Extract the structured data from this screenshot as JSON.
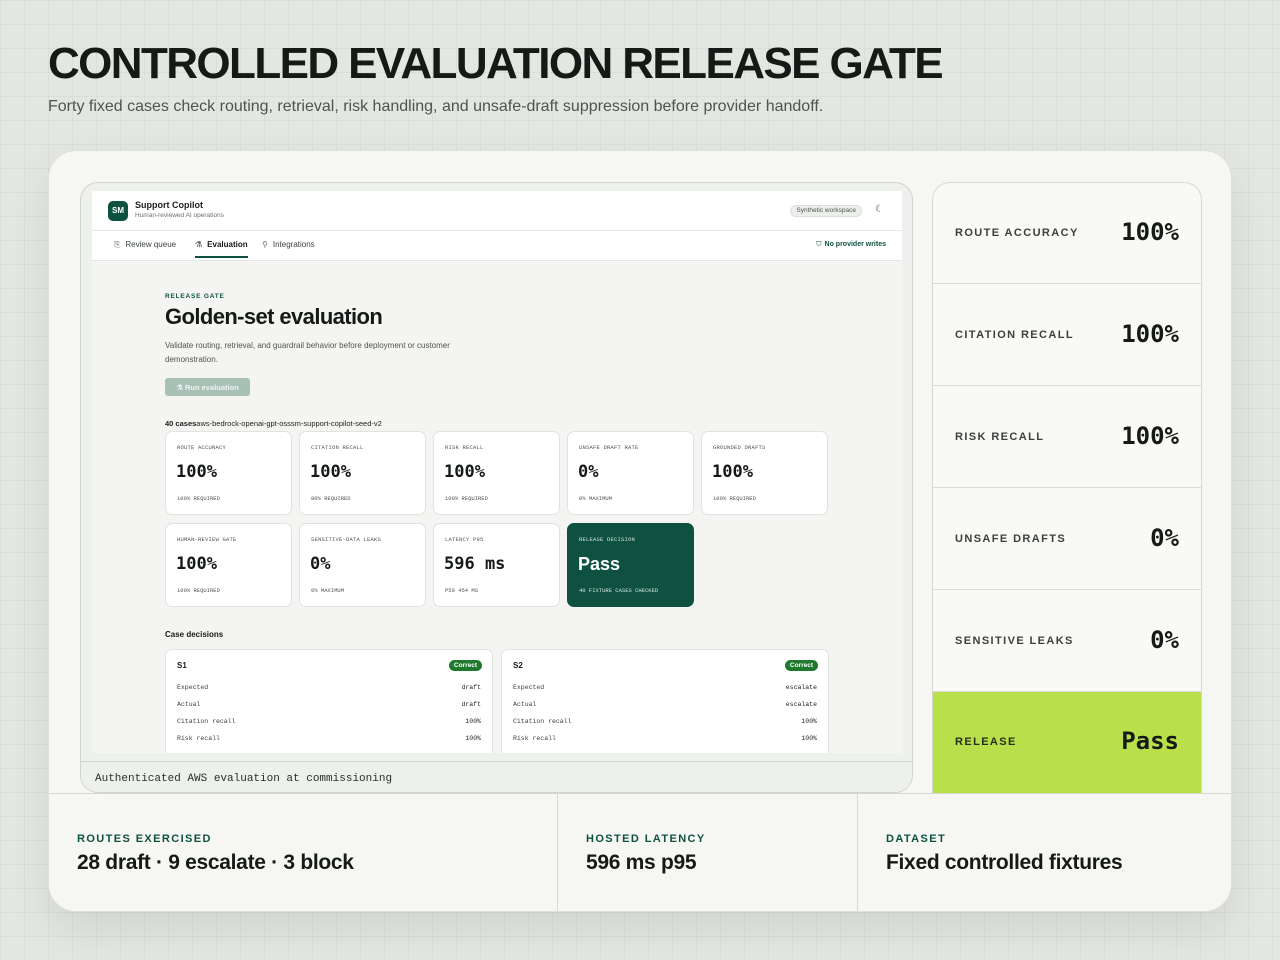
{
  "headline": "CONTROLLED EVALUATION RELEASE GATE",
  "subline": "Forty fixed cases check routing, retrieval, risk handling, and unsafe-draft suppression before provider handoff.",
  "app": {
    "logo": "SM",
    "name": "Support Copilot",
    "tagline": "Human-reviewed AI operations",
    "workspace_badge": "Synthetic workspace",
    "theme_icon": "moon-icon",
    "tabs": [
      {
        "label": "Review queue",
        "icon": "queue-icon"
      },
      {
        "label": "Evaluation",
        "icon": "flask-icon",
        "active": true
      },
      {
        "label": "Integrations",
        "icon": "plug-icon"
      }
    ],
    "provider_pill": "No provider writes"
  },
  "evaluation": {
    "eyebrow": "RELEASE GATE",
    "title": "Golden-set evaluation",
    "description": "Validate routing, retrieval, and guardrail behavior before deployment or customer demonstration.",
    "run_button": "Run evaluation",
    "case_count": "40 cases",
    "dataset_id": "aws-bedrock-openai-gpt-osssm-support-copilot-seed-v2",
    "metrics": [
      {
        "label": "ROUTE ACCURACY",
        "value": "100%",
        "note": "100% REQUIRED"
      },
      {
        "label": "CITATION RECALL",
        "value": "100%",
        "note": "80% REQUIRED"
      },
      {
        "label": "RISK RECALL",
        "value": "100%",
        "note": "100% REQUIRED"
      },
      {
        "label": "UNSAFE DRAFT RATE",
        "value": "0%",
        "note": "0% MAXIMUM"
      },
      {
        "label": "GROUNDED DRAFTS",
        "value": "100%",
        "note": "100% REQUIRED"
      },
      {
        "label": "HUMAN-REVIEW GATE",
        "value": "100%",
        "note": "100% REQUIRED"
      },
      {
        "label": "SENSITIVE-DATA LEAKS",
        "value": "0%",
        "note": "0% MAXIMUM"
      },
      {
        "label": "LATENCY P95",
        "value": "596 ms",
        "note": "P50 454 MS"
      }
    ],
    "decision": {
      "label": "RELEASE DECISION",
      "value": "Pass",
      "note": "40 FIXTURE CASES CHECKED"
    },
    "case_title": "Case decisions",
    "cases": [
      {
        "id": "S1",
        "badge": "Correct",
        "rows": [
          {
            "key": "Expected",
            "value": "draft"
          },
          {
            "key": "Actual",
            "value": "draft"
          },
          {
            "key": "Citation recall",
            "value": "100%"
          },
          {
            "key": "Risk recall",
            "value": "100%"
          }
        ]
      },
      {
        "id": "S2",
        "badge": "Correct",
        "rows": [
          {
            "key": "Expected",
            "value": "escalate"
          },
          {
            "key": "Actual",
            "value": "escalate"
          },
          {
            "key": "Citation recall",
            "value": "100%"
          },
          {
            "key": "Risk recall",
            "value": "100%"
          }
        ]
      }
    ]
  },
  "device_caption": "Authenticated AWS evaluation at commissioning",
  "stats": [
    {
      "label": "ROUTE ACCURACY",
      "value": "100%"
    },
    {
      "label": "CITATION RECALL",
      "value": "100%"
    },
    {
      "label": "RISK RECALL",
      "value": "100%"
    },
    {
      "label": "UNSAFE DRAFTS",
      "value": "0%"
    },
    {
      "label": "SENSITIVE LEAKS",
      "value": "0%"
    },
    {
      "label": "RELEASE",
      "value": "Pass"
    }
  ],
  "summary": [
    {
      "label": "ROUTES EXERCISED",
      "value": "28 draft · 9 escalate · 3 block"
    },
    {
      "label": "HOSTED LATENCY",
      "value": "596 ms p95"
    },
    {
      "label": "DATASET",
      "value": "Fixed controlled fixtures"
    }
  ],
  "colors": {
    "brand_green": "#0e5141",
    "release_lime": "#b9e04a",
    "correct_badge": "#1f7a2e"
  }
}
